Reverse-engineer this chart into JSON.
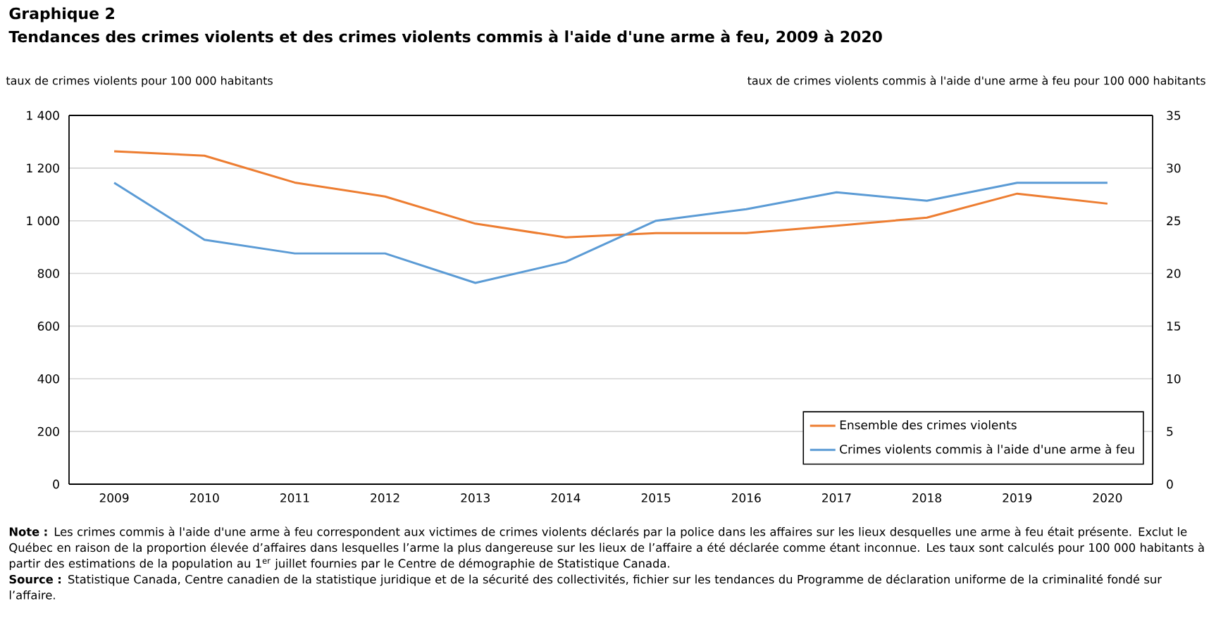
{
  "chart_data": {
    "type": "line",
    "title": "Graphique 2",
    "subtitle": "Tendances des crimes violents et des crimes violents commis à l'aide d'une arme à feu, 2009 à 2020",
    "ylabel": "taux de crimes violents pour 100 000 habitants",
    "y2label": "taux de crimes violents commis à l'aide d'une arme à feu pour 100 000 habitants",
    "categories": [
      "2009",
      "2010",
      "2011",
      "2012",
      "2013",
      "2014",
      "2015",
      "2016",
      "2017",
      "2018",
      "2019",
      "2020"
    ],
    "series": [
      {
        "name": "Ensemble des crimes violents",
        "color": "#ed7d31",
        "values": [
          1264,
          1247,
          1145,
          1092,
          989,
          937,
          953,
          953,
          981,
          1012,
          1103,
          1065
        ]
      },
      {
        "name": "Crimes violents commis à l'aide d'une arme à feu",
        "color": "#5b9bd5",
        "axis": "y2",
        "values": [
          28.6,
          23.2,
          21.9,
          21.9,
          19.1,
          21.1,
          25.0,
          26.1,
          27.7,
          26.9,
          28.6,
          28.6
        ]
      }
    ],
    "ylim": [
      0,
      1400
    ],
    "yticks": [
      0,
      200,
      400,
      600,
      800,
      {
        "value": 1000,
        "label": "1 000"
      },
      {
        "value": 1200,
        "label": "1 200"
      },
      {
        "value": 1400,
        "label": "1 400"
      }
    ],
    "y2lim": [
      0,
      35
    ],
    "y2ticks": [
      0,
      5,
      10,
      15,
      20,
      25,
      30,
      35
    ],
    "grid": "y",
    "legend": "bottom right",
    "marker": "none",
    "line_style": "solid",
    "annotations": [
      "**Note :** Les crimes commis à l'aide d'une arme à feu correspondent aux victimes de crimes violents déclarés par la police dans les affaires sur les lieux desquelles une arme à feu était présente. Exclut le Québec en raison de la proportion élevée d’affaires dans lesquelles l’arme la plus dangereuse sur les lieux de l’affaire a été déclarée comme étant inconnue. Les taux sont calculés pour 100 000 habitants à partir des estimations de la population au 1$^{er}$ juillet fournies par le Centre de démographie de Statistique Canada.",
      "**Source :** Statistique Canada, Centre canadien de la statistique juridique et de la sécurité des collectivités, fichier sur les tendances du Programme de déclaration uniforme de la criminalité fondé sur l’affaire."
    ]
  }
}
